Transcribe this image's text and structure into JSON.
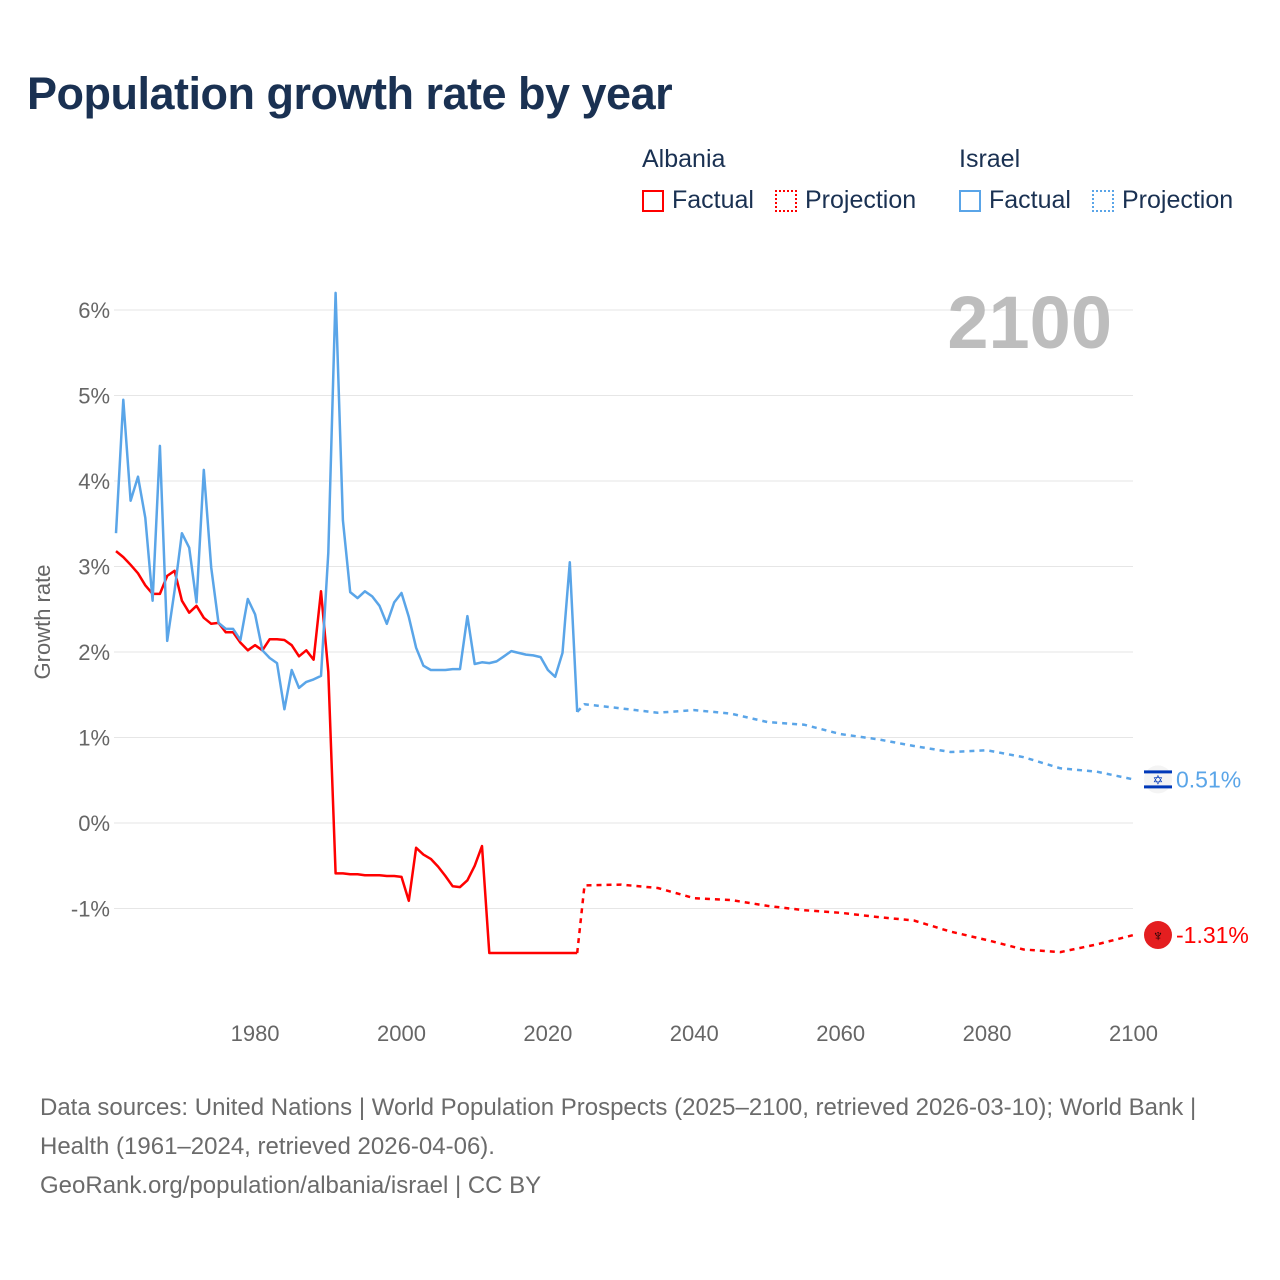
{
  "title": "Population growth rate by year",
  "year_display": "2100",
  "legend": {
    "albania": {
      "name": "Albania",
      "factual": "Factual",
      "projection": "Projection"
    },
    "israel": {
      "name": "Israel",
      "factual": "Factual",
      "projection": "Projection"
    }
  },
  "chart_data": {
    "type": "line",
    "title": "Population growth rate by year",
    "xlabel": "",
    "ylabel": "Growth rate",
    "xlim": [
      1961,
      2100
    ],
    "ylim": [
      -2,
      6.4
    ],
    "x_ticks": [
      1980,
      2000,
      2020,
      2040,
      2060,
      2080,
      2100
    ],
    "x_tick_labels": [
      "1980",
      "2000",
      "2020",
      "2040",
      "2060",
      "2080",
      "2100"
    ],
    "y_ticks": [
      -1,
      0,
      1,
      2,
      3,
      4,
      5,
      6
    ],
    "y_tick_labels": [
      "-1%",
      "0%",
      "1%",
      "2%",
      "3%",
      "4%",
      "5%",
      "6%"
    ],
    "grid": true,
    "legend_position": "top-right",
    "series": [
      {
        "name": "Albania Factual",
        "color": "#ff0000",
        "style": "solid",
        "x_start": 1961,
        "values": [
          3.18,
          3.11,
          3.02,
          2.92,
          2.78,
          2.68,
          2.68,
          2.89,
          2.95,
          2.6,
          2.46,
          2.54,
          2.4,
          2.33,
          2.34,
          2.23,
          2.23,
          2.11,
          2.02,
          2.08,
          2.02,
          2.15,
          2.15,
          2.14,
          2.08,
          1.95,
          2.02,
          1.91,
          2.71,
          1.77,
          -0.59,
          -0.59,
          -0.6,
          -0.6,
          -0.61,
          -0.61,
          -0.61,
          -0.62,
          -0.62,
          -0.63,
          -0.91,
          -0.29,
          -0.37,
          -0.42,
          -0.51,
          -0.62,
          -0.74,
          -0.75,
          -0.67,
          -0.5,
          -0.27,
          -1.52,
          -1.52,
          -1.52,
          -1.52,
          -1.52,
          -1.52,
          -1.52,
          -1.52,
          -1.52,
          -1.52,
          -1.52,
          -1.52,
          -1.52
        ]
      },
      {
        "name": "Albania Projection",
        "color": "#ff0000",
        "style": "dotted",
        "x": [
          2024,
          2025,
          2030,
          2035,
          2040,
          2045,
          2050,
          2055,
          2060,
          2065,
          2070,
          2075,
          2080,
          2085,
          2090,
          2095,
          2100
        ],
        "values": [
          -1.52,
          -0.73,
          -0.72,
          -0.76,
          -0.88,
          -0.9,
          -0.97,
          -1.02,
          -1.05,
          -1.1,
          -1.14,
          -1.27,
          -1.37,
          -1.48,
          -1.51,
          -1.42,
          -1.31
        ]
      },
      {
        "name": "Israel Factual",
        "color": "#5aa5e8",
        "style": "solid",
        "x_start": 1961,
        "values": [
          3.39,
          4.95,
          3.77,
          4.05,
          3.57,
          2.6,
          4.41,
          2.13,
          2.72,
          3.39,
          3.22,
          2.58,
          4.13,
          2.99,
          2.34,
          2.27,
          2.27,
          2.14,
          2.62,
          2.44,
          2.02,
          1.93,
          1.87,
          1.33,
          1.79,
          1.58,
          1.65,
          1.68,
          1.72,
          3.16,
          6.2,
          3.54,
          2.7,
          2.63,
          2.71,
          2.65,
          2.54,
          2.33,
          2.58,
          2.69,
          2.41,
          2.05,
          1.84,
          1.79,
          1.79,
          1.79,
          1.8,
          1.8,
          2.42,
          1.86,
          1.88,
          1.87,
          1.89,
          1.95,
          2.01,
          1.99,
          1.97,
          1.96,
          1.94,
          1.79,
          1.71,
          1.99,
          3.05,
          1.3
        ]
      },
      {
        "name": "Israel Projection",
        "color": "#5aa5e8",
        "style": "dotted",
        "x": [
          2024,
          2025,
          2030,
          2035,
          2040,
          2045,
          2050,
          2055,
          2060,
          2065,
          2070,
          2075,
          2080,
          2085,
          2090,
          2095,
          2100
        ],
        "values": [
          1.3,
          1.39,
          1.34,
          1.29,
          1.32,
          1.28,
          1.18,
          1.15,
          1.04,
          0.98,
          0.9,
          0.83,
          0.85,
          0.77,
          0.64,
          0.6,
          0.51
        ]
      }
    ],
    "end_labels": [
      {
        "country": "Israel",
        "text": "0.51%",
        "value": 0.51,
        "color": "#5aa5e8"
      },
      {
        "country": "Albania",
        "text": "-1.31%",
        "value": -1.31,
        "color": "#ff0000"
      }
    ]
  },
  "footer": {
    "sources": "Data sources: United Nations | World Population Prospects (2025–2100, retrieved 2026-03-10); World Bank | Health (1961–2024, retrieved 2026-04-06).",
    "credit": "GeoRank.org/population/albania/israel | CC BY"
  }
}
